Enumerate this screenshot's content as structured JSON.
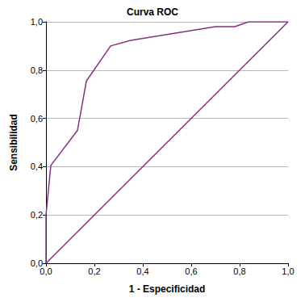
{
  "chart_data": {
    "type": "line",
    "title": "Curva ROC",
    "x_label": "1 - Especificidad",
    "y_label": "Sensibilidad",
    "series": [
      {
        "x": [
          0,
          0,
          0.02,
          0.13,
          0.167,
          0.267,
          0.35,
          0.7,
          0.78,
          0.837,
          1.0
        ],
        "values": [
          0,
          0.2,
          0.405,
          0.55,
          0.755,
          0.9,
          0.923,
          0.98,
          0.98,
          1.0,
          1.0
        ],
        "color": "#84307f"
      },
      {
        "x": [
          0,
          1.0
        ],
        "values": [
          0,
          1.0
        ],
        "color": "#84307f"
      }
    ],
    "xlim": [
      0,
      1.0
    ],
    "ylim": [
      0,
      1.0
    ],
    "xticks": [
      {
        "value": 0,
        "label": "0,0"
      },
      {
        "value": 0.2,
        "label": "0,2"
      },
      {
        "value": 0.4,
        "label": "0,4"
      },
      {
        "value": 0.6,
        "label": "0,6"
      },
      {
        "value": 0.8,
        "label": "0,8"
      },
      {
        "value": 1.0,
        "label": "1,0"
      }
    ],
    "yticks": [
      {
        "value": 0,
        "label": "0,0"
      },
      {
        "value": 0.2,
        "label": "0,2"
      },
      {
        "value": 0.4,
        "label": "0,4"
      },
      {
        "value": 0.6,
        "label": "0,6"
      },
      {
        "value": 0.8,
        "label": "0,8"
      },
      {
        "value": 1.0,
        "label": "1,0"
      }
    ],
    "grid": true
  }
}
